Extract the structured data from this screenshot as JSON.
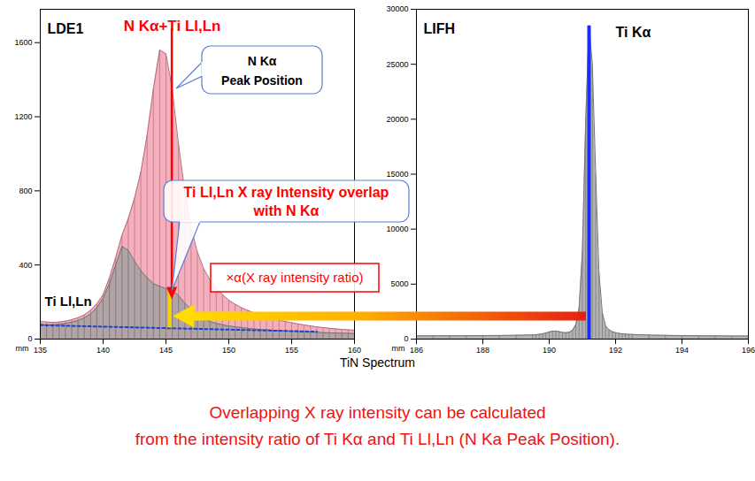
{
  "chart_data": [
    {
      "type": "area",
      "title": "LDE1",
      "xlabel": "mm",
      "x": [
        135,
        135.5,
        136,
        136.5,
        137,
        137.5,
        138,
        138.5,
        139,
        139.5,
        140,
        140.5,
        141,
        141.5,
        142,
        142.5,
        143,
        143.5,
        144,
        144.5,
        145,
        145.5,
        146,
        146.5,
        147,
        147.5,
        148,
        148.5,
        149,
        149.5,
        150,
        150.5,
        151,
        151.5,
        152,
        152.5,
        153,
        153.5,
        154,
        154.5,
        155,
        155.5,
        156,
        156.5,
        157,
        157.5,
        158,
        158.5,
        159,
        159.5,
        160
      ],
      "series": [
        {
          "name": "N Kα+Ti Ll,Ln",
          "color": "#f29aab",
          "values": [
            95,
            92,
            90,
            92,
            97,
            105,
            115,
            130,
            155,
            190,
            240,
            330,
            440,
            560,
            650,
            760,
            900,
            1100,
            1350,
            1560,
            1540,
            1350,
            1050,
            800,
            600,
            470,
            380,
            320,
            275,
            240,
            210,
            188,
            170,
            155,
            142,
            130,
            120,
            110,
            102,
            95,
            88,
            82,
            76,
            71,
            66,
            62,
            58,
            55,
            52,
            50,
            48
          ]
        },
        {
          "name": "Ti Ll,Ln",
          "color": "#a0a0a0",
          "values": [
            80,
            78,
            78,
            80,
            85,
            92,
            100,
            115,
            135,
            170,
            220,
            300,
            400,
            500,
            480,
            420,
            370,
            330,
            300,
            285,
            272,
            262,
            235,
            195,
            160,
            130,
            110,
            95,
            85,
            77,
            71,
            66,
            62,
            58,
            55,
            52,
            50,
            48,
            46,
            44,
            42,
            40,
            38,
            37,
            36,
            35,
            34,
            33,
            32,
            31,
            30
          ]
        },
        {
          "type": "line",
          "color": "#2040c8",
          "line_style": "dotted",
          "x": [
            135,
            157
          ],
          "values": [
            75,
            40
          ]
        }
      ],
      "xlim": [
        135,
        160
      ],
      "xticks": [
        135,
        140,
        145,
        150,
        155,
        160
      ],
      "ylim": [
        0,
        1780
      ],
      "yticks": [
        0,
        400,
        800,
        1200,
        1600
      ],
      "peak": {
        "x": 145.5,
        "label": "N Kα\nPeak Position",
        "color": "#ff0000"
      },
      "overlap": {
        "x": 145.3,
        "from": 60,
        "to": 270,
        "color": "#f5d300",
        "label": "Ti Ll,Ln X ray Intensity overlap\nwith N Kα"
      },
      "ratio_label": "×α(X ray intensity ratio)"
    },
    {
      "type": "area",
      "title": "LIFH",
      "xlabel": "mm",
      "x": [
        186,
        186.5,
        187,
        187.5,
        188,
        188.5,
        189,
        189.5,
        189.6,
        189.7,
        189.8,
        189.9,
        190,
        190.1,
        190.2,
        190.3,
        190.4,
        190.5,
        190.6,
        190.7,
        190.8,
        190.9,
        191,
        191.1,
        191.2,
        191.3,
        191.4,
        191.5,
        191.6,
        191.7,
        191.8,
        191.9,
        192,
        192.1,
        192.2,
        192.3,
        192.4,
        192.5,
        193,
        193.5,
        194,
        194.5,
        195,
        195.5,
        196
      ],
      "series": [
        {
          "name": "Ti Kα",
          "color": "#a0a0a0",
          "values": [
            300,
            300,
            305,
            310,
            320,
            330,
            350,
            380,
            400,
            430,
            480,
            560,
            650,
            720,
            730,
            680,
            610,
            580,
            620,
            800,
            1300,
            2800,
            8000,
            20000,
            28500,
            25000,
            15000,
            6000,
            2400,
            1200,
            850,
            680,
            580,
            520,
            480,
            450,
            430,
            415,
            370,
            340,
            320,
            305,
            295,
            288,
            282
          ]
        }
      ],
      "xlim": [
        186,
        196
      ],
      "xticks": [
        186,
        188,
        190,
        192,
        194,
        196
      ],
      "ylim": [
        0,
        30000
      ],
      "yticks": [
        0,
        5000,
        10000,
        15000,
        20000,
        25000,
        30000
      ],
      "peak": {
        "x": 191.2,
        "color": "#1a2cff"
      }
    }
  ],
  "caption": "TiN Spectrum",
  "note": "Overlapping X ray intensity can be calculated\nfrom the intensity ratio of Ti Kα and Ti Ll,Ln (N Ka Peak Position)."
}
